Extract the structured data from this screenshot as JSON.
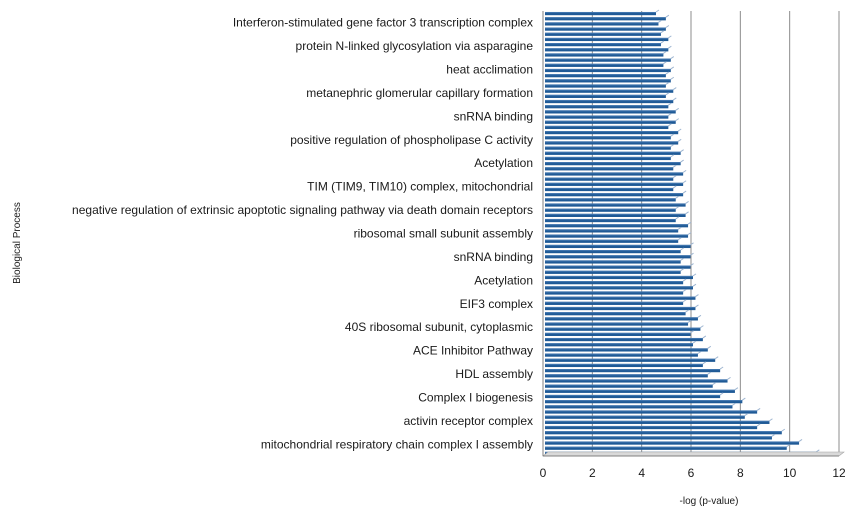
{
  "chart_data": {
    "type": "bar",
    "orientation": "horizontal",
    "ylabel": "Biological Process",
    "xlabel": "-log (p-value)",
    "xlim": [
      0,
      12
    ],
    "x_ticks": [
      "0",
      "2",
      "4",
      "6",
      "8",
      "10",
      "12"
    ],
    "grid": true,
    "bar_color": "#1f5a96",
    "categories": [
      "Interferon-stimulated gene factor 3 transcription complex",
      "protein N-linked glycosylation via asparagine",
      "heat acclimation",
      "metanephric glomerular capillary formation",
      "snRNA binding",
      "positive regulation of phospholipase C activity",
      "Acetylation",
      "TIM (TIM9, TIM10) complex, mitochondrial",
      "negative regulation of extrinsic apoptotic signaling pathway via death domain receptors",
      "ribosomal small subunit assembly",
      "snRNA binding",
      "Acetylation",
      "EIF3 complex",
      "40S ribosomal subunit, cytoplasmic",
      "ACE Inhibitor Pathway",
      "HDL assembly",
      "Complex I biogenesis",
      "activin receptor complex",
      "mitochondrial respiratory chain complex I assembly"
    ],
    "bar_values": [
      4.5,
      4.9,
      4.6,
      4.9,
      4.7,
      5.0,
      4.7,
      5.0,
      4.8,
      5.1,
      4.8,
      5.1,
      4.9,
      5.1,
      4.9,
      5.2,
      4.9,
      5.2,
      5.0,
      5.3,
      5.0,
      5.3,
      5.0,
      5.4,
      5.1,
      5.4,
      5.1,
      5.5,
      5.1,
      5.5,
      5.2,
      5.6,
      5.2,
      5.6,
      5.2,
      5.6,
      5.3,
      5.7,
      5.3,
      5.7,
      5.3,
      5.8,
      5.4,
      5.8,
      5.4,
      5.9,
      5.5,
      5.9,
      5.5,
      5.9,
      5.5,
      6.0,
      5.6,
      6.0,
      5.6,
      6.1,
      5.6,
      6.1,
      5.7,
      6.2,
      5.8,
      6.3,
      5.9,
      6.4,
      6.0,
      6.6,
      6.2,
      6.9,
      6.4,
      7.1,
      6.6,
      7.4,
      6.8,
      7.7,
      7.1,
      8.0,
      7.6,
      8.6,
      8.1,
      9.1,
      8.6,
      9.6,
      9.2,
      10.3,
      9.8,
      11.0
    ]
  }
}
